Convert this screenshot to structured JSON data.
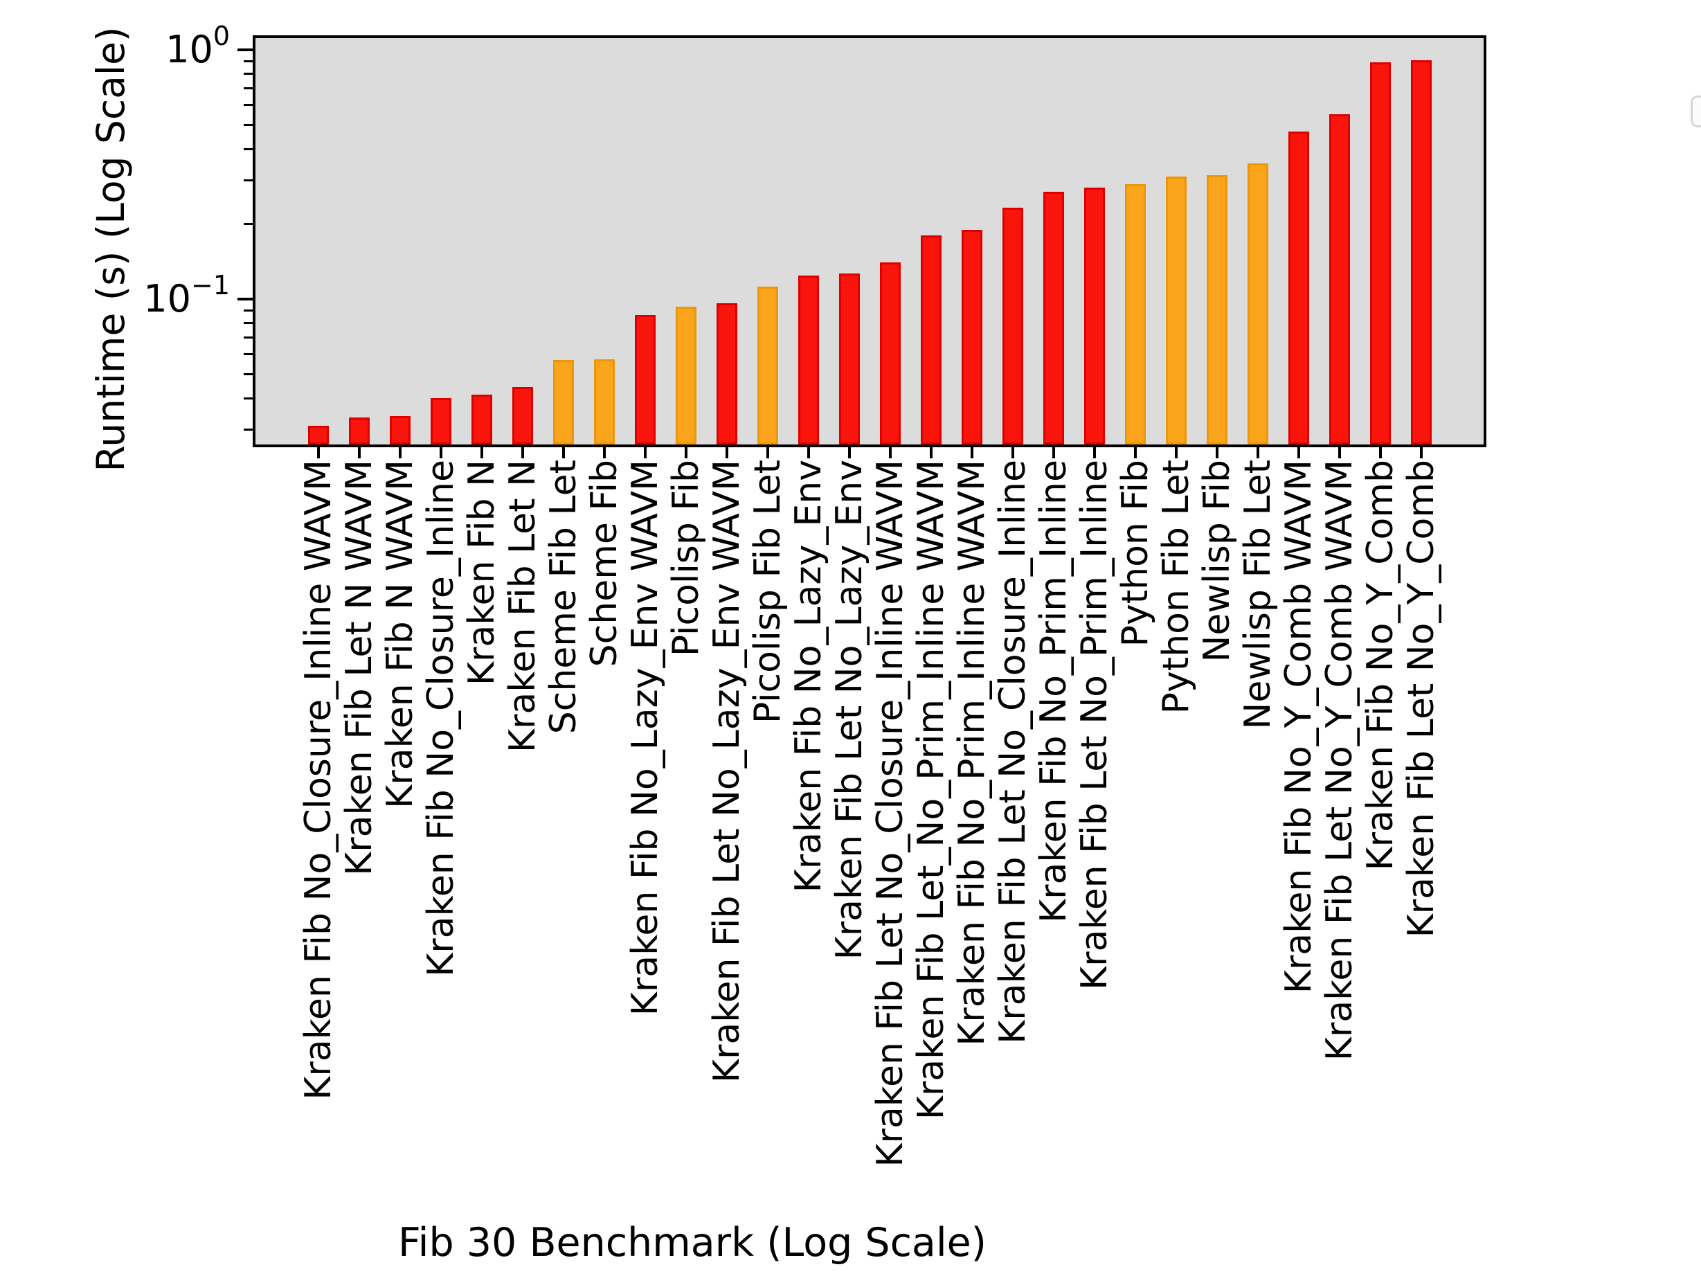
{
  "chart_data": {
    "type": "bar",
    "title": "",
    "xlabel": "Fib 30 Benchmark (Log Scale)",
    "ylabel": "Runtime (s) (Log Scale)",
    "yscale": "log",
    "ylim": [
      0.026,
      1.12
    ],
    "grid": false,
    "legend": {
      "visible": true,
      "entries": [],
      "position": "upper-right"
    },
    "categories": [
      "Kraken Fib No_Closure_Inline WAVM",
      "Kraken Fib Let N WAVM",
      "Kraken Fib N WAVM",
      "Kraken Fib No_Closure_Inline",
      "Kraken Fib N",
      "Kraken Fib Let N",
      "Scheme Fib Let",
      "Scheme Fib",
      "Kraken Fib No_Lazy_Env WAVM",
      "Picolisp Fib",
      "Kraken Fib Let No_Lazy_Env WAVM",
      "Picolisp Fib Let",
      "Kraken Fib No_Lazy_Env",
      "Kraken Fib Let No_Lazy_Env",
      "Kraken Fib Let No_Closure_Inline WAVM",
      "Kraken Fib Let_No_Prim_Inline WAVM",
      "Kraken Fib No_Prim_Inline WAVM",
      "Kraken Fib Let No_Closure_Inline",
      "Kraken Fib No_Prim_Inline",
      "Kraken Fib Let No_Prim_Inline",
      "Python Fib",
      "Python Fib Let",
      "Newlisp Fib",
      "Newlisp Fib Let",
      "Kraken Fib No_Y_Comb WAVM",
      "Kraken Fib Let No_Y_Comb WAVM",
      "Kraken Fib No_Y_Comb",
      "Kraken Fib Let No_Y_Comb"
    ],
    "values": [
      0.031,
      0.0335,
      0.034,
      0.04,
      0.0415,
      0.0445,
      0.057,
      0.0575,
      0.0865,
      0.093,
      0.096,
      0.112,
      0.124,
      0.127,
      0.14,
      0.18,
      0.19,
      0.232,
      0.27,
      0.28,
      0.29,
      0.31,
      0.315,
      0.35,
      0.47,
      0.55,
      0.89,
      0.91
    ],
    "colors": [
      "red",
      "red",
      "red",
      "red",
      "red",
      "red",
      "orange",
      "orange",
      "red",
      "orange",
      "red",
      "orange",
      "red",
      "red",
      "red",
      "red",
      "red",
      "red",
      "red",
      "red",
      "orange",
      "orange",
      "orange",
      "orange",
      "red",
      "red",
      "red",
      "red"
    ]
  },
  "axis": {
    "y_ticks": [
      {
        "base": "10",
        "exp": "0",
        "value": 1
      },
      {
        "base": "10",
        "exp": "−1",
        "value": 0.1
      }
    ],
    "y_minor_ticks": [
      0.9,
      0.8,
      0.7,
      0.6,
      0.5,
      0.4,
      0.3,
      0.2,
      0.09,
      0.08,
      0.07,
      0.06,
      0.05,
      0.04,
      0.03
    ]
  },
  "palette": {
    "red_fill": "#F9150B",
    "red_edge": "#DE0000",
    "orange_fill": "#FAA51C",
    "orange_edge": "#EC9609",
    "plot_bg": "#DCDCDC",
    "figure_bg": "#FFFFFF",
    "spine": "#000000",
    "text": "#000000"
  }
}
